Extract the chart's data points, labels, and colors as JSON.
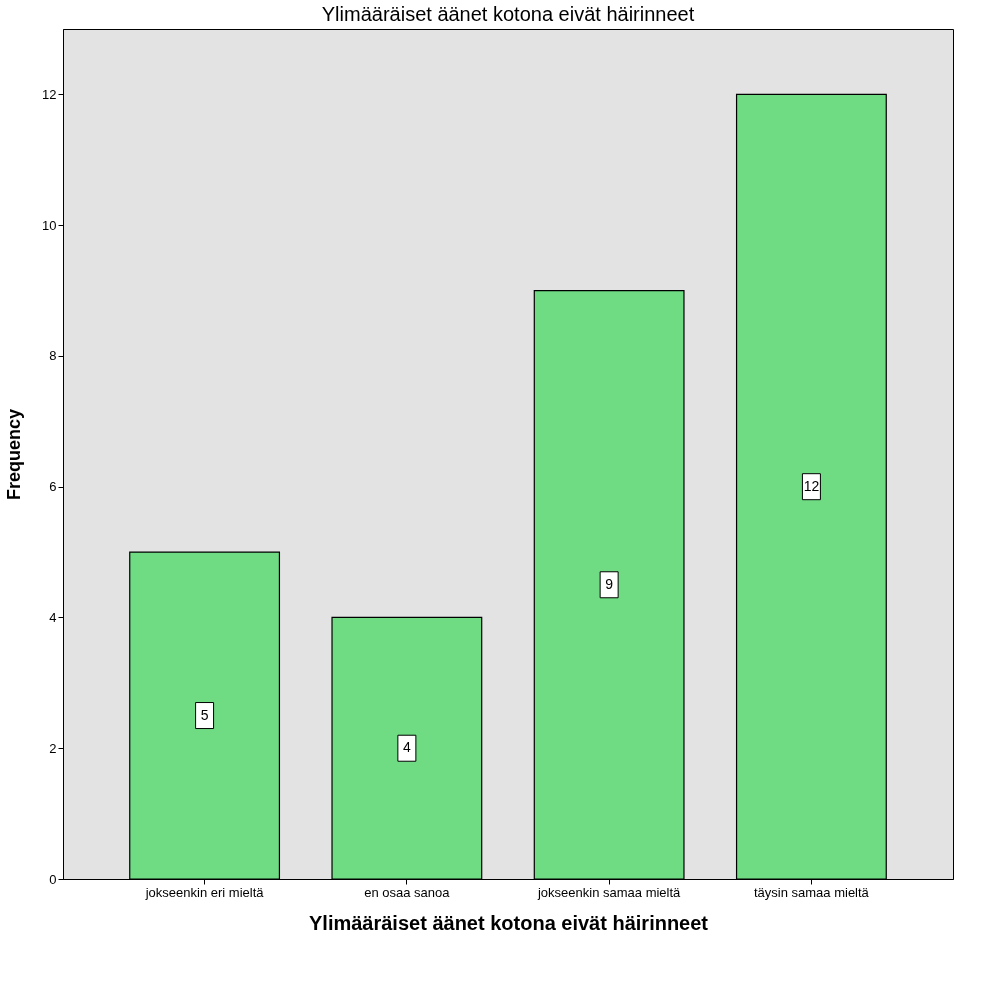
{
  "chart_data": {
    "type": "bar",
    "title": "Ylimääräiset äänet kotona eivät häirinneet",
    "xlabel": "Ylimääräiset äänet kotona eivät häirinneet",
    "ylabel": "Frequency",
    "categories": [
      "jokseenkin eri mieltä",
      "en osaa sanoa",
      "jokseenkin samaa mieltä",
      "täysin samaa mieltä"
    ],
    "values": [
      5,
      4,
      9,
      12
    ],
    "color": "#6fdc84",
    "ylim": [
      0,
      13
    ],
    "yticks": [
      0,
      2,
      4,
      6,
      8,
      10,
      12
    ],
    "grid": false,
    "data_labels": true
  }
}
